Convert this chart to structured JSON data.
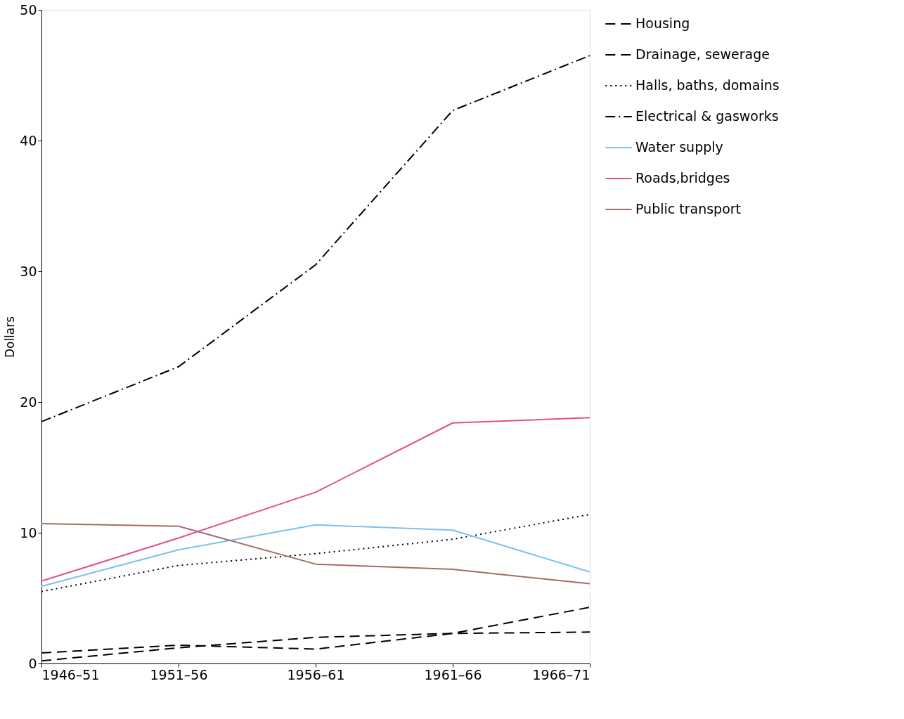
{
  "chart_data": {
    "type": "line",
    "ylabel": "Dollars",
    "categories": [
      "1946–51",
      "1951–56",
      "1956–61",
      "1961–66",
      "1966–71"
    ],
    "ylim": [
      0,
      50
    ],
    "yticks": [
      0,
      10,
      20,
      30,
      40,
      50
    ],
    "grid": false,
    "legend": "right",
    "marker": "none",
    "series": [
      {
        "name": "Housing",
        "color": "#000000",
        "line_style": "dashed",
        "values": [
          0.8,
          1.4,
          1.1,
          2.3,
          4.3
        ]
      },
      {
        "name": "Drainage, sewerage",
        "color": "#000000",
        "line_style": "dashed",
        "values": [
          0.2,
          1.2,
          2.0,
          2.3,
          2.4
        ]
      },
      {
        "name": "Halls, baths, domains",
        "color": "#000000",
        "line_style": "dotted",
        "values": [
          5.5,
          7.5,
          8.4,
          9.5,
          11.4
        ]
      },
      {
        "name": "Electrical & gasworks",
        "color": "#000000",
        "line_style": "dashdot",
        "values": [
          18.5,
          22.7,
          30.5,
          42.3,
          46.5
        ]
      },
      {
        "name": "Water supply",
        "color": "#7fbfef",
        "line_style": "solid",
        "values": [
          5.9,
          8.7,
          10.6,
          10.2,
          7.0
        ]
      },
      {
        "name": "Roads,bridges",
        "color": "#e0508a",
        "line_style": "solid",
        "values": [
          6.3,
          9.6,
          13.1,
          18.4,
          18.8
        ]
      },
      {
        "name": "Public transport",
        "color": "#a86a64",
        "line_style": "solid",
        "values": [
          10.7,
          10.5,
          7.6,
          7.2,
          6.1
        ]
      }
    ]
  }
}
